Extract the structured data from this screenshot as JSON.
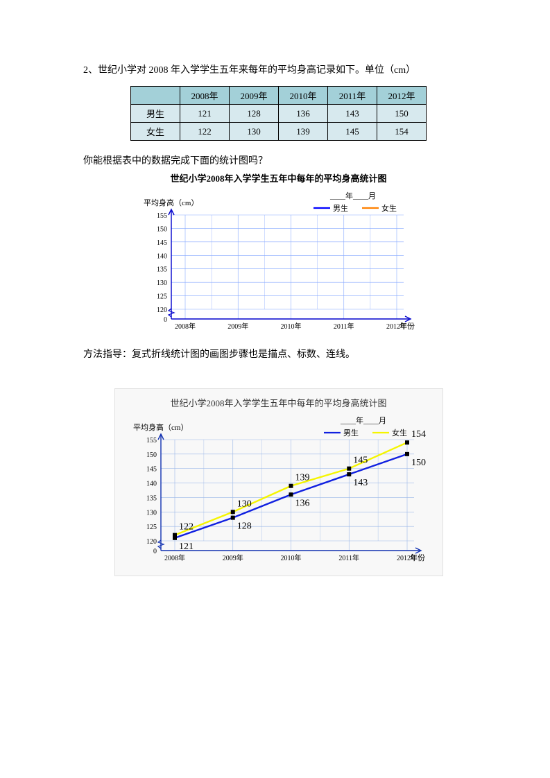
{
  "question": "2、世纪小学对 2008 年入学学生五年来每年的平均身高记录如下。单位（cm）",
  "subquestion": "你能根据表中的数据完成下面的统计图吗？",
  "method_note": "方法指导：复式折线统计图的画图步骤也是描点、标数、连线。",
  "table": {
    "header_blank": "",
    "columns": [
      "2008年",
      "2009年",
      "2010年",
      "2011年",
      "2012年"
    ],
    "rows": [
      {
        "label": "男生",
        "values": [
          121,
          128,
          136,
          143,
          150
        ]
      },
      {
        "label": "女生",
        "values": [
          122,
          130,
          139,
          145,
          154
        ]
      }
    ],
    "header_bg": "#a3d0d8",
    "row_bg": "#d7e9ee"
  },
  "blank_chart": {
    "title": "世纪小学2008年入学学生五年中每年的平均身高统计图",
    "date_label": "____年____月",
    "y_label": "平均身高（cm）",
    "x_label": "年份",
    "legend": [
      {
        "label": "男生",
        "color": "#0000ff"
      },
      {
        "label": "女生",
        "color": "#ff8000"
      }
    ],
    "x_categories": [
      "2008年",
      "2009年",
      "2010年",
      "2011年",
      "2012年"
    ],
    "y_min": 0,
    "y_break_low": 0,
    "y_break_high": 120,
    "y_max": 155,
    "y_step": 5,
    "grid_color": "#88aaff",
    "axis_color": "#0000cc",
    "bg": "#ffffff"
  },
  "answer_chart": {
    "title": "世纪小学2008年入学学生五年中每年的平均身高统计图",
    "date_label": "____年____月",
    "y_label": "平均身高（cm）",
    "x_label": "年份",
    "legend": [
      {
        "label": "男生",
        "color": "#1020e0"
      },
      {
        "label": "女生",
        "color": "#f5f500"
      }
    ],
    "x_categories": [
      "2008年",
      "2009年",
      "2010年",
      "2011年",
      "2012年"
    ],
    "y_min": 0,
    "y_break_low": 0,
    "y_break_high": 120,
    "y_max": 155,
    "y_step": 5,
    "grid_color": "#9bb8e8",
    "axis_color": "#1030b0",
    "bg": "#f8f8f8",
    "series": [
      {
        "name": "男生",
        "color": "#1020e0",
        "values": [
          121,
          128,
          136,
          143,
          150
        ]
      },
      {
        "name": "女生",
        "color": "#f5f500",
        "values": [
          122,
          130,
          139,
          145,
          154
        ]
      }
    ],
    "label_fontsize": 14
  }
}
